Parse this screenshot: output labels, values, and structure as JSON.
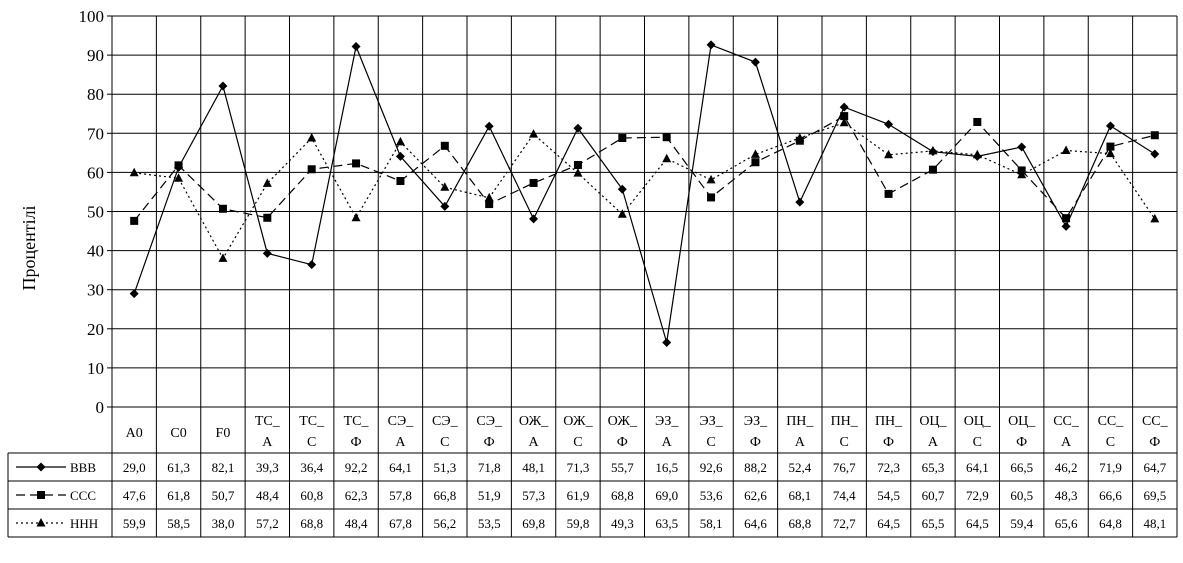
{
  "chart_data": {
    "type": "line",
    "ylabel": "Процентілі",
    "ylim": [
      0,
      100
    ],
    "yticks": [
      0,
      10,
      20,
      30,
      40,
      50,
      60,
      70,
      80,
      90,
      100
    ],
    "grid": true,
    "categories": [
      [
        "A0"
      ],
      [
        "C0"
      ],
      [
        "F0"
      ],
      [
        "ТС_",
        "А"
      ],
      [
        "ТС_",
        "С"
      ],
      [
        "ТС_",
        "Ф"
      ],
      [
        "СЭ_",
        "А"
      ],
      [
        "СЭ_",
        "С"
      ],
      [
        "СЭ_",
        "Ф"
      ],
      [
        "ОЖ_",
        "А"
      ],
      [
        "ОЖ_",
        "С"
      ],
      [
        "ОЖ_",
        "Ф"
      ],
      [
        "ЭЗ_",
        "А"
      ],
      [
        "ЭЗ_",
        "С"
      ],
      [
        "ЭЗ_",
        "Ф"
      ],
      [
        "ПН_",
        "А"
      ],
      [
        "ПН_",
        "С"
      ],
      [
        "ПН_",
        "Ф"
      ],
      [
        "ОЦ_",
        "А"
      ],
      [
        "ОЦ_",
        "С"
      ],
      [
        "ОЦ_",
        "Ф"
      ],
      [
        "СС_",
        "А"
      ],
      [
        "СС_",
        "С"
      ],
      [
        "СС_",
        "Ф"
      ]
    ],
    "series": [
      {
        "name": "ВВВ",
        "marker": "diamond",
        "dash": "solid",
        "values": [
          29.0,
          61.3,
          82.1,
          39.3,
          36.4,
          92.2,
          64.1,
          51.3,
          71.8,
          48.1,
          71.3,
          55.7,
          16.5,
          92.6,
          88.2,
          52.4,
          76.7,
          72.3,
          65.3,
          64.1,
          66.5,
          46.2,
          71.9,
          64.7
        ],
        "labels": [
          "29,0",
          "61,3",
          "82,1",
          "39,3",
          "36,4",
          "92,2",
          "64,1",
          "51,3",
          "71,8",
          "48,1",
          "71,3",
          "55,7",
          "16,5",
          "92,6",
          "88,2",
          "52,4",
          "76,7",
          "72,3",
          "65,3",
          "64,1",
          "66,5",
          "46,2",
          "71,9",
          "64,7"
        ]
      },
      {
        "name": "ССС",
        "marker": "square",
        "dash": "dashed",
        "values": [
          47.6,
          61.8,
          50.7,
          48.4,
          60.8,
          62.3,
          57.8,
          66.8,
          51.9,
          57.3,
          61.9,
          68.8,
          69.0,
          53.6,
          62.6,
          68.1,
          74.4,
          54.5,
          60.7,
          72.9,
          60.5,
          48.3,
          66.6,
          69.5
        ],
        "labels": [
          "47,6",
          "61,8",
          "50,7",
          "48,4",
          "60,8",
          "62,3",
          "57,8",
          "66,8",
          "51,9",
          "57,3",
          "61,9",
          "68,8",
          "69,0",
          "53,6",
          "62,6",
          "68,1",
          "74,4",
          "54,5",
          "60,7",
          "72,9",
          "60,5",
          "48,3",
          "66,6",
          "69,5"
        ]
      },
      {
        "name": "ННН",
        "marker": "triangle",
        "dash": "dotted",
        "values": [
          59.9,
          58.5,
          38.0,
          57.2,
          68.8,
          48.4,
          67.8,
          56.2,
          53.5,
          69.8,
          59.8,
          49.3,
          63.5,
          58.1,
          64.6,
          68.8,
          72.7,
          64.5,
          65.5,
          64.5,
          59.4,
          65.6,
          64.8,
          48.1
        ],
        "labels": [
          "59,9",
          "58,5",
          "38,0",
          "57,2",
          "68,8",
          "48,4",
          "67,8",
          "56,2",
          "53,5",
          "69,8",
          "59,8",
          "49,3",
          "63,5",
          "58,1",
          "64,6",
          "68,8",
          "72,7",
          "64,5",
          "65,5",
          "64,5",
          "59,4",
          "65,6",
          "64,8",
          "48,1"
        ]
      }
    ]
  }
}
